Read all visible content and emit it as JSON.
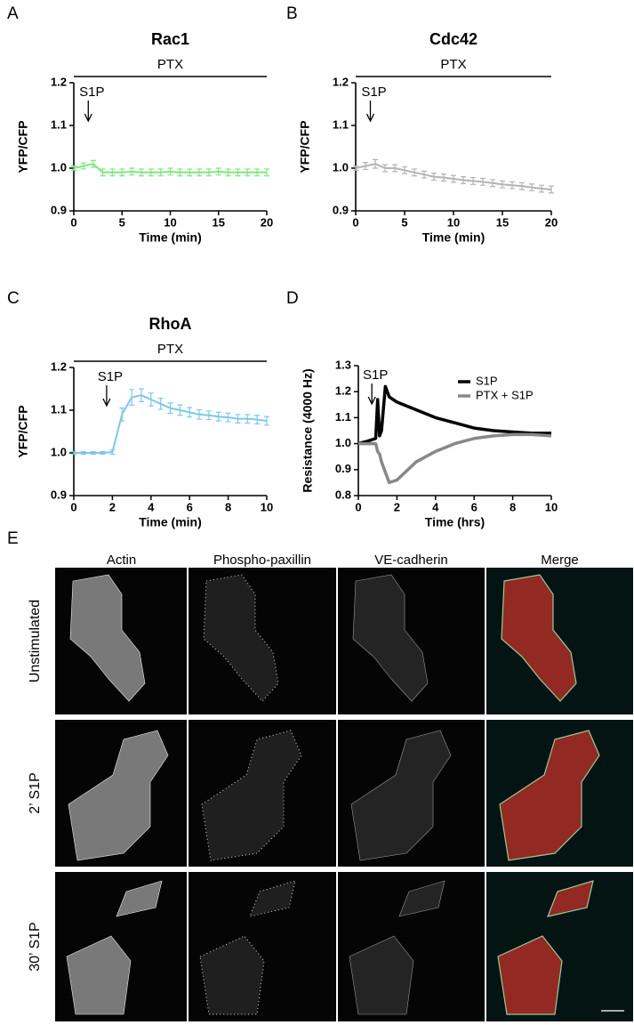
{
  "chart_data": [
    {
      "type": "line",
      "panel_label": "A",
      "title": "Rac1",
      "xlabel": "Time (min)",
      "ylabel": "YFP/CFP",
      "x": [
        0,
        1,
        2,
        3,
        4,
        5,
        6,
        7,
        8,
        9,
        10,
        11,
        12,
        13,
        14,
        15,
        16,
        17,
        18,
        19,
        20
      ],
      "series": [
        {
          "name": "Rac1",
          "color": "#7ee87e",
          "values": [
            1.0,
            1.005,
            1.01,
            0.99,
            0.99,
            0.99,
            0.992,
            0.99,
            0.99,
            0.99,
            0.992,
            0.99,
            0.99,
            0.99,
            0.99,
            0.992,
            0.99,
            0.99,
            0.99,
            0.99,
            0.99
          ],
          "errors": [
            0.005,
            0.007,
            0.008,
            0.008,
            0.008,
            0.008,
            0.008,
            0.008,
            0.008,
            0.008,
            0.008,
            0.008,
            0.008,
            0.008,
            0.008,
            0.008,
            0.008,
            0.008,
            0.008,
            0.008,
            0.008
          ]
        }
      ],
      "xlim": [
        0,
        20
      ],
      "xticks": [
        0,
        5,
        10,
        15,
        20
      ],
      "ylim": [
        0.9,
        1.2
      ],
      "yticks": [
        0.9,
        {
          "value": 1,
          "label": "1.0"
        },
        1.1,
        1.2
      ],
      "bar_label": "PTX",
      "bar_x": [
        0,
        20
      ],
      "arrow_label": "S1P",
      "arrow_x": 1.5
    },
    {
      "type": "line",
      "panel_label": "B",
      "title": "Cdc42",
      "xlabel": "Time (min)",
      "ylabel": "YFP/CFP",
      "x": [
        0,
        1,
        2,
        3,
        4,
        5,
        6,
        7,
        8,
        9,
        10,
        11,
        12,
        13,
        14,
        15,
        16,
        17,
        18,
        19,
        20
      ],
      "series": [
        {
          "name": "Cdc42",
          "color": "#b4b4b4",
          "values": [
            1.0,
            1.005,
            1.01,
            1.0,
            1.0,
            0.995,
            0.99,
            0.985,
            0.98,
            0.978,
            0.975,
            0.972,
            0.97,
            0.968,
            0.965,
            0.962,
            0.96,
            0.958,
            0.955,
            0.952,
            0.95
          ],
          "errors": [
            0.005,
            0.008,
            0.01,
            0.008,
            0.008,
            0.008,
            0.008,
            0.008,
            0.008,
            0.008,
            0.008,
            0.008,
            0.008,
            0.008,
            0.008,
            0.008,
            0.008,
            0.008,
            0.008,
            0.008,
            0.008
          ]
        }
      ],
      "xlim": [
        0,
        20
      ],
      "xticks": [
        0,
        5,
        10,
        15,
        20
      ],
      "ylim": [
        0.9,
        1.2
      ],
      "yticks": [
        0.9,
        {
          "value": 1,
          "label": "1.0"
        },
        1.1,
        1.2
      ],
      "bar_label": "PTX",
      "bar_x": [
        0,
        20
      ],
      "arrow_label": "S1P",
      "arrow_x": 1.5
    },
    {
      "type": "line",
      "panel_label": "C",
      "title": "RhoA",
      "xlabel": "Time (min)",
      "ylabel": "YFP/CFP",
      "x": [
        0,
        0.5,
        1,
        1.5,
        2,
        2.5,
        3,
        3.5,
        4,
        4.5,
        5,
        5.5,
        6,
        6.5,
        7,
        7.5,
        8,
        8.5,
        9,
        9.5,
        10
      ],
      "series": [
        {
          "name": "RhoA",
          "color": "#7cc8ea",
          "values": [
            1.0,
            1.0,
            1.0,
            1.0,
            1.002,
            1.09,
            1.13,
            1.135,
            1.125,
            1.115,
            1.105,
            1.1,
            1.095,
            1.09,
            1.088,
            1.085,
            1.083,
            1.08,
            1.08,
            1.078,
            1.075
          ],
          "errors": [
            0.003,
            0.003,
            0.003,
            0.003,
            0.005,
            0.015,
            0.018,
            0.015,
            0.015,
            0.013,
            0.012,
            0.012,
            0.011,
            0.011,
            0.01,
            0.01,
            0.01,
            0.01,
            0.01,
            0.01,
            0.01
          ]
        }
      ],
      "xlim": [
        0,
        10
      ],
      "xticks": [
        0,
        2,
        4,
        6,
        8,
        10
      ],
      "ylim": [
        0.9,
        1.2
      ],
      "yticks": [
        0.9,
        {
          "value": 1,
          "label": "1.0"
        },
        1.1,
        1.2
      ],
      "bar_label": "PTX",
      "bar_x": [
        0,
        10
      ],
      "arrow_label": "S1P",
      "arrow_x": 1.7
    },
    {
      "type": "line",
      "panel_label": "D",
      "xlabel": "Time (hrs)",
      "ylabel": "Resistance (4000 Hz)",
      "x": [
        0,
        0.5,
        0.9,
        1.0,
        1.1,
        1.2,
        1.4,
        1.6,
        2,
        3,
        4,
        5,
        6,
        7,
        8,
        9,
        10
      ],
      "series": [
        {
          "name": "S1P",
          "color": "#000000",
          "values": [
            1.0,
            1.01,
            1.02,
            1.17,
            1.03,
            1.05,
            1.22,
            1.18,
            1.16,
            1.13,
            1.1,
            1.08,
            1.06,
            1.05,
            1.045,
            1.04,
            1.04
          ]
        },
        {
          "name": "PTX + S1P",
          "color": "#888888",
          "values": [
            1.0,
            1.0,
            1.0,
            0.97,
            0.96,
            0.93,
            0.89,
            0.85,
            0.86,
            0.93,
            0.97,
            1.0,
            1.02,
            1.03,
            1.035,
            1.035,
            1.03
          ]
        }
      ],
      "xlim": [
        0,
        10
      ],
      "xticks": [
        0,
        2,
        4,
        6,
        8,
        10
      ],
      "ylim": [
        0.8,
        1.3
      ],
      "yticks": [
        0.8,
        0.9,
        {
          "value": 1,
          "label": "1.0"
        },
        1.1,
        1.2,
        1.3
      ],
      "legend": "upper right",
      "arrow_label": "S1P",
      "arrow_x": 0.7
    }
  ],
  "panel_e": {
    "panel_label": "E",
    "columns": [
      "Actin",
      "Phospho-paxillin",
      "VE-cadherin",
      "Merge"
    ],
    "rows": [
      "Unstimulated",
      "2’ S1P",
      "30’ S1P"
    ]
  }
}
